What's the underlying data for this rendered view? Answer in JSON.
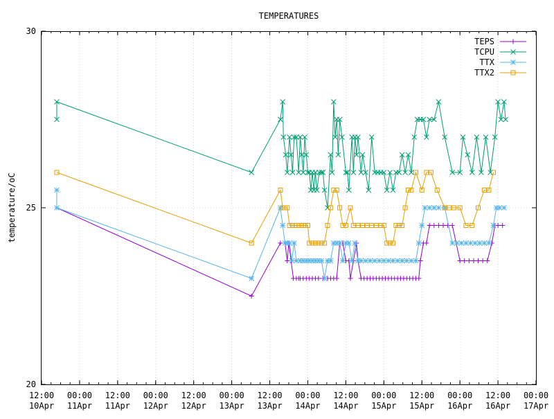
{
  "chart_data": {
    "type": "line",
    "title": "TEMPERATURES",
    "xlabel": "",
    "ylabel": "temperature/oC",
    "x_unit": "day-of-April (fractional, 2-line tick labels HH:MM / DDMon)",
    "xlim": [
      10.5,
      17.0
    ],
    "ylim": [
      20,
      30
    ],
    "y_ticks": [
      20,
      25,
      30
    ],
    "x_ticks": [
      {
        "x": 10.5,
        "time": "12:00",
        "date": "10Apr"
      },
      {
        "x": 11.0,
        "time": "00:00",
        "date": "11Apr"
      },
      {
        "x": 11.5,
        "time": "12:00",
        "date": "11Apr"
      },
      {
        "x": 12.0,
        "time": "00:00",
        "date": "12Apr"
      },
      {
        "x": 12.5,
        "time": "12:00",
        "date": "12Apr"
      },
      {
        "x": 13.0,
        "time": "00:00",
        "date": "13Apr"
      },
      {
        "x": 13.5,
        "time": "12:00",
        "date": "13Apr"
      },
      {
        "x": 14.0,
        "time": "00:00",
        "date": "14Apr"
      },
      {
        "x": 14.5,
        "time": "12:00",
        "date": "14Apr"
      },
      {
        "x": 15.0,
        "time": "00:00",
        "date": "15Apr"
      },
      {
        "x": 15.5,
        "time": "12:00",
        "date": "15Apr"
      },
      {
        "x": 16.0,
        "time": "00:00",
        "date": "16Apr"
      },
      {
        "x": 16.5,
        "time": "12:00",
        "date": "16Apr"
      },
      {
        "x": 17.0,
        "time": "00:00",
        "date": "17Apr"
      }
    ],
    "grid": true,
    "legend": "top-right",
    "series": [
      {
        "name": "TEPS",
        "color": "#9400d3",
        "marker": "plus",
        "points": [
          [
            10.7,
            25.0
          ],
          [
            13.26,
            22.5
          ],
          [
            13.64,
            24.0
          ],
          [
            13.7,
            24.0
          ],
          [
            13.73,
            23.5
          ],
          [
            13.75,
            24.0
          ],
          [
            13.78,
            23.5
          ],
          [
            13.81,
            23.0
          ],
          [
            13.85,
            23.0
          ],
          [
            13.88,
            23.0
          ],
          [
            13.9,
            23.0
          ],
          [
            13.94,
            23.0
          ],
          [
            13.98,
            23.0
          ],
          [
            14.02,
            23.0
          ],
          [
            14.06,
            23.0
          ],
          [
            14.1,
            23.0
          ],
          [
            14.14,
            23.0
          ],
          [
            14.2,
            23.0
          ],
          [
            14.26,
            23.0
          ],
          [
            14.3,
            23.0
          ],
          [
            14.34,
            23.0
          ],
          [
            14.38,
            23.0
          ],
          [
            14.42,
            24.0
          ],
          [
            14.46,
            24.0
          ],
          [
            14.5,
            23.5
          ],
          [
            14.54,
            23.5
          ],
          [
            14.56,
            23.0
          ],
          [
            14.6,
            23.5
          ],
          [
            14.64,
            24.0
          ],
          [
            14.66,
            23.5
          ],
          [
            14.7,
            23.0
          ],
          [
            14.74,
            23.0
          ],
          [
            14.78,
            23.0
          ],
          [
            14.82,
            23.0
          ],
          [
            14.86,
            23.0
          ],
          [
            14.9,
            23.0
          ],
          [
            14.94,
            23.0
          ],
          [
            14.98,
            23.0
          ],
          [
            15.02,
            23.0
          ],
          [
            15.06,
            23.0
          ],
          [
            15.1,
            23.0
          ],
          [
            15.14,
            23.0
          ],
          [
            15.18,
            23.0
          ],
          [
            15.22,
            23.0
          ],
          [
            15.26,
            23.0
          ],
          [
            15.3,
            23.0
          ],
          [
            15.34,
            23.0
          ],
          [
            15.38,
            23.0
          ],
          [
            15.42,
            23.0
          ],
          [
            15.46,
            23.0
          ],
          [
            15.48,
            23.5
          ],
          [
            15.52,
            24.0
          ],
          [
            15.56,
            24.0
          ],
          [
            15.6,
            24.5
          ],
          [
            15.66,
            24.5
          ],
          [
            15.72,
            24.5
          ],
          [
            15.78,
            24.5
          ],
          [
            15.84,
            24.5
          ],
          [
            15.9,
            24.5
          ],
          [
            16.0,
            23.5
          ],
          [
            16.06,
            23.5
          ],
          [
            16.12,
            23.5
          ],
          [
            16.18,
            23.5
          ],
          [
            16.24,
            23.5
          ],
          [
            16.3,
            23.5
          ],
          [
            16.36,
            23.5
          ],
          [
            16.42,
            24.0
          ],
          [
            16.46,
            24.5
          ],
          [
            16.5,
            24.5
          ],
          [
            16.56,
            24.5
          ]
        ]
      },
      {
        "name": "TCPU",
        "color": "#009e73",
        "marker": "x",
        "points": [
          [
            10.7,
            27.5
          ],
          [
            10.7,
            28.0
          ],
          [
            13.26,
            26.0
          ],
          [
            13.64,
            27.5
          ],
          [
            13.67,
            28.0
          ],
          [
            13.68,
            27.0
          ],
          [
            13.71,
            26.5
          ],
          [
            13.73,
            26.0
          ],
          [
            13.76,
            27.0
          ],
          [
            13.78,
            26.5
          ],
          [
            13.8,
            26.0
          ],
          [
            13.82,
            27.0
          ],
          [
            13.85,
            27.0
          ],
          [
            13.88,
            26.0
          ],
          [
            13.9,
            27.0
          ],
          [
            13.92,
            26.5
          ],
          [
            13.94,
            26.0
          ],
          [
            13.96,
            27.0
          ],
          [
            13.98,
            26.5
          ],
          [
            14.0,
            26.0
          ],
          [
            14.02,
            26.0
          ],
          [
            14.04,
            25.5
          ],
          [
            14.06,
            26.0
          ],
          [
            14.08,
            25.5
          ],
          [
            14.1,
            26.0
          ],
          [
            14.12,
            25.5
          ],
          [
            14.15,
            26.0
          ],
          [
            14.18,
            26.0
          ],
          [
            14.2,
            26.0
          ],
          [
            14.22,
            25.5
          ],
          [
            14.26,
            25.0
          ],
          [
            14.3,
            26.5
          ],
          [
            14.32,
            26.0
          ],
          [
            14.34,
            28.0
          ],
          [
            14.36,
            27.0
          ],
          [
            14.38,
            27.5
          ],
          [
            14.4,
            26.5
          ],
          [
            14.42,
            27.5
          ],
          [
            14.45,
            27.0
          ],
          [
            14.5,
            26.0
          ],
          [
            14.52,
            26.0
          ],
          [
            14.54,
            25.5
          ],
          [
            14.58,
            27.0
          ],
          [
            14.6,
            26.0
          ],
          [
            14.62,
            27.0
          ],
          [
            14.64,
            26.5
          ],
          [
            14.66,
            27.0
          ],
          [
            14.7,
            26.0
          ],
          [
            14.72,
            26.5
          ],
          [
            14.76,
            26.0
          ],
          [
            14.8,
            25.5
          ],
          [
            14.84,
            27.0
          ],
          [
            14.88,
            26.0
          ],
          [
            14.92,
            26.0
          ],
          [
            14.96,
            26.0
          ],
          [
            15.0,
            26.0
          ],
          [
            15.04,
            25.5
          ],
          [
            15.08,
            26.0
          ],
          [
            15.12,
            25.5
          ],
          [
            15.16,
            26.0
          ],
          [
            15.2,
            26.0
          ],
          [
            15.24,
            26.5
          ],
          [
            15.28,
            26.0
          ],
          [
            15.32,
            26.5
          ],
          [
            15.36,
            26.0
          ],
          [
            15.4,
            27.0
          ],
          [
            15.44,
            27.5
          ],
          [
            15.48,
            27.5
          ],
          [
            15.52,
            27.5
          ],
          [
            15.56,
            27.0
          ],
          [
            15.6,
            27.5
          ],
          [
            15.66,
            27.5
          ],
          [
            15.72,
            28.0
          ],
          [
            15.8,
            27.0
          ],
          [
            15.9,
            26.0
          ],
          [
            16.0,
            26.0
          ],
          [
            16.04,
            27.0
          ],
          [
            16.1,
            26.5
          ],
          [
            16.16,
            26.0
          ],
          [
            16.22,
            27.0
          ],
          [
            16.28,
            26.0
          ],
          [
            16.34,
            27.0
          ],
          [
            16.4,
            26.0
          ],
          [
            16.46,
            27.0
          ],
          [
            16.5,
            28.0
          ],
          [
            16.54,
            27.5
          ],
          [
            16.58,
            28.0
          ],
          [
            16.6,
            27.5
          ]
        ]
      },
      {
        "name": "TTX",
        "color": "#56b4e9",
        "marker": "star",
        "points": [
          [
            10.7,
            25.5
          ],
          [
            10.7,
            25.0
          ],
          [
            13.26,
            23.0
          ],
          [
            13.64,
            25.0
          ],
          [
            13.67,
            24.5
          ],
          [
            13.7,
            24.0
          ],
          [
            13.73,
            24.0
          ],
          [
            13.76,
            24.0
          ],
          [
            13.79,
            23.5
          ],
          [
            13.82,
            24.0
          ],
          [
            13.85,
            23.5
          ],
          [
            13.9,
            23.5
          ],
          [
            13.94,
            23.5
          ],
          [
            13.98,
            23.5
          ],
          [
            14.02,
            23.5
          ],
          [
            14.06,
            23.5
          ],
          [
            14.1,
            23.5
          ],
          [
            14.14,
            23.5
          ],
          [
            14.18,
            23.5
          ],
          [
            14.22,
            23.0
          ],
          [
            14.26,
            23.5
          ],
          [
            14.3,
            23.5
          ],
          [
            14.34,
            24.0
          ],
          [
            14.38,
            24.0
          ],
          [
            14.42,
            24.0
          ],
          [
            14.46,
            23.5
          ],
          [
            14.5,
            24.0
          ],
          [
            14.54,
            24.0
          ],
          [
            14.58,
            23.5
          ],
          [
            14.62,
            24.0
          ],
          [
            14.66,
            23.5
          ],
          [
            14.7,
            23.5
          ],
          [
            14.76,
            23.5
          ],
          [
            14.82,
            23.5
          ],
          [
            14.88,
            23.5
          ],
          [
            14.94,
            23.5
          ],
          [
            15.0,
            23.5
          ],
          [
            15.06,
            23.5
          ],
          [
            15.12,
            23.5
          ],
          [
            15.18,
            23.5
          ],
          [
            15.24,
            23.5
          ],
          [
            15.3,
            23.5
          ],
          [
            15.36,
            23.5
          ],
          [
            15.42,
            23.5
          ],
          [
            15.46,
            24.0
          ],
          [
            15.5,
            24.5
          ],
          [
            15.54,
            25.0
          ],
          [
            15.6,
            25.0
          ],
          [
            15.66,
            25.0
          ],
          [
            15.72,
            25.0
          ],
          [
            15.8,
            25.0
          ],
          [
            15.9,
            24.0
          ],
          [
            15.96,
            24.0
          ],
          [
            16.02,
            24.0
          ],
          [
            16.08,
            24.0
          ],
          [
            16.14,
            24.0
          ],
          [
            16.2,
            24.0
          ],
          [
            16.26,
            24.0
          ],
          [
            16.32,
            24.0
          ],
          [
            16.38,
            24.0
          ],
          [
            16.44,
            24.5
          ],
          [
            16.48,
            25.0
          ],
          [
            16.52,
            25.0
          ],
          [
            16.58,
            25.0
          ]
        ]
      },
      {
        "name": "TTX2",
        "color": "#e69f00",
        "marker": "square",
        "points": [
          [
            10.7,
            26.0
          ],
          [
            13.26,
            24.0
          ],
          [
            13.64,
            25.5
          ],
          [
            13.67,
            25.0
          ],
          [
            13.7,
            25.0
          ],
          [
            13.73,
            25.0
          ],
          [
            13.76,
            24.5
          ],
          [
            13.8,
            24.5
          ],
          [
            13.84,
            24.5
          ],
          [
            13.88,
            24.5
          ],
          [
            13.92,
            24.5
          ],
          [
            13.96,
            24.5
          ],
          [
            14.0,
            24.5
          ],
          [
            14.02,
            24.0
          ],
          [
            14.06,
            24.0
          ],
          [
            14.1,
            24.0
          ],
          [
            14.14,
            24.0
          ],
          [
            14.18,
            24.0
          ],
          [
            14.22,
            24.0
          ],
          [
            14.26,
            24.5
          ],
          [
            14.3,
            25.0
          ],
          [
            14.34,
            25.5
          ],
          [
            14.38,
            25.5
          ],
          [
            14.42,
            25.0
          ],
          [
            14.46,
            24.5
          ],
          [
            14.5,
            24.5
          ],
          [
            14.56,
            25.0
          ],
          [
            14.6,
            24.5
          ],
          [
            14.66,
            24.5
          ],
          [
            14.72,
            24.5
          ],
          [
            14.78,
            24.5
          ],
          [
            14.84,
            24.5
          ],
          [
            14.9,
            24.5
          ],
          [
            14.96,
            24.5
          ],
          [
            15.0,
            24.5
          ],
          [
            15.04,
            24.0
          ],
          [
            15.08,
            24.0
          ],
          [
            15.12,
            24.0
          ],
          [
            15.16,
            24.5
          ],
          [
            15.2,
            24.5
          ],
          [
            15.24,
            24.5
          ],
          [
            15.28,
            25.0
          ],
          [
            15.32,
            25.5
          ],
          [
            15.36,
            25.5
          ],
          [
            15.42,
            26.0
          ],
          [
            15.5,
            25.5
          ],
          [
            15.56,
            26.0
          ],
          [
            15.62,
            26.0
          ],
          [
            15.7,
            25.5
          ],
          [
            15.8,
            25.0
          ],
          [
            15.86,
            25.0
          ],
          [
            15.92,
            25.0
          ],
          [
            16.0,
            25.0
          ],
          [
            16.08,
            24.5
          ],
          [
            16.16,
            24.5
          ],
          [
            16.24,
            25.0
          ],
          [
            16.32,
            25.5
          ],
          [
            16.38,
            25.5
          ],
          [
            16.44,
            26.0
          ]
        ]
      }
    ]
  }
}
